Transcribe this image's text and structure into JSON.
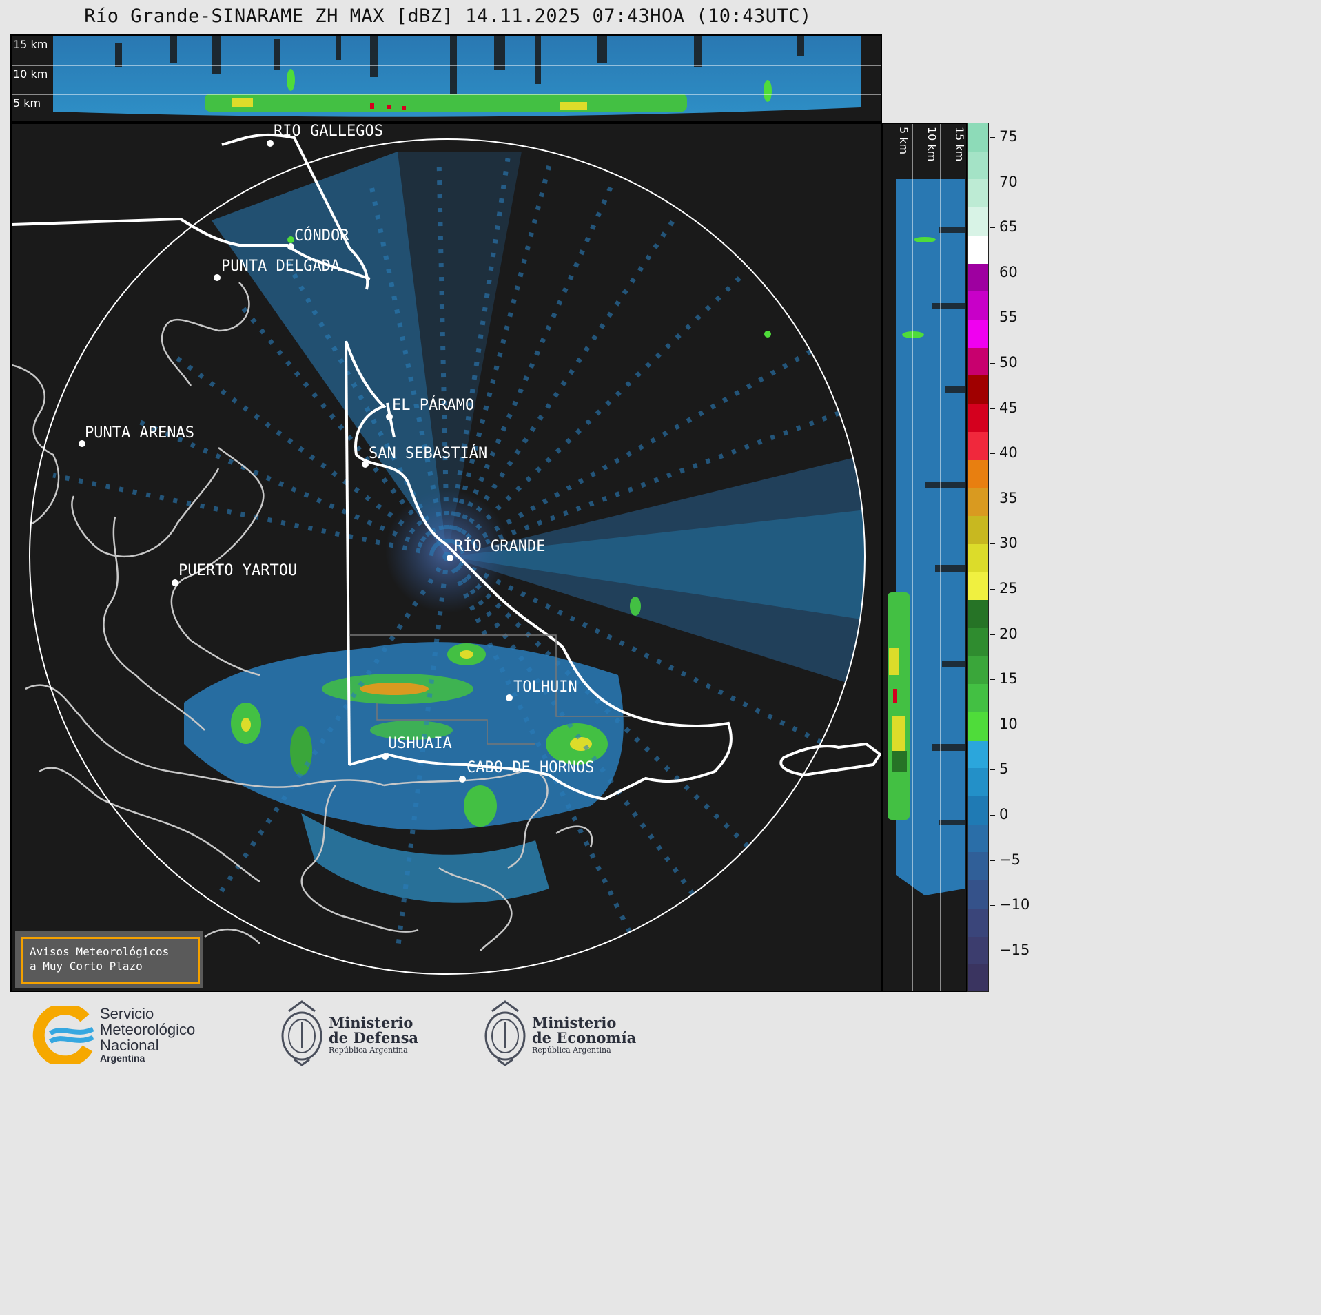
{
  "title": "Río Grande-SINARAME ZH MAX [dBZ] 14.11.2025 07:43HOA (10:43UTC)",
  "height_labels": {
    "h15": "15 km",
    "h10": "10 km",
    "h5": "5 km"
  },
  "cities": [
    {
      "name": "RÍO GALLEGOS"
    },
    {
      "name": "CÓNDOR"
    },
    {
      "name": "PUNTA DELGADA"
    },
    {
      "name": "PUNTA ARENAS"
    },
    {
      "name": "EL PÁRAMO"
    },
    {
      "name": "SAN SEBASTIÁN"
    },
    {
      "name": "RÍO GRANDE"
    },
    {
      "name": "PUERTO YARTOU"
    },
    {
      "name": "TOLHUIN"
    },
    {
      "name": "USHUAIA"
    },
    {
      "name": "CABO DE HORNOS"
    }
  ],
  "colorbar": {
    "unit": "dBZ",
    "ticks": [
      "75",
      "70",
      "65",
      "60",
      "55",
      "50",
      "45",
      "40",
      "35",
      "30",
      "25",
      "20",
      "15",
      "10",
      "5",
      "0",
      "−5",
      "−10",
      "−15"
    ],
    "colors": [
      "#8ddbb8",
      "#a4e3c6",
      "#bdebd4",
      "#d8f3e6",
      "#ffffff",
      "#9e00a0",
      "#c800c8",
      "#f000f0",
      "#c8006e",
      "#a00000",
      "#d4001e",
      "#f0283c",
      "#e87f10",
      "#d99a20",
      "#c8b820",
      "#dcdc2a",
      "#f0f040",
      "#267326",
      "#2f8c2f",
      "#3aa63a",
      "#43c043",
      "#4fdc3a",
      "#2ba6dc",
      "#2390c8",
      "#1f7ab4",
      "#2a6ea8",
      "#305f98",
      "#35528a",
      "#3a457a",
      "#3c3d6e",
      "#3a3460"
    ]
  },
  "warning": {
    "line1": "Avisos Meteorológicos",
    "line2": "a Muy Corto Plazo"
  },
  "logos": {
    "smn": {
      "line1": "Servicio",
      "line2": "Meteorológico",
      "line3": "Nacional",
      "line4": "Argentina"
    },
    "defensa": {
      "line1": "Ministerio",
      "line2": "de Defensa",
      "line3": "República Argentina"
    },
    "economia": {
      "line1": "Ministerio",
      "line2": "de Economía",
      "line3": "República Argentina"
    }
  }
}
